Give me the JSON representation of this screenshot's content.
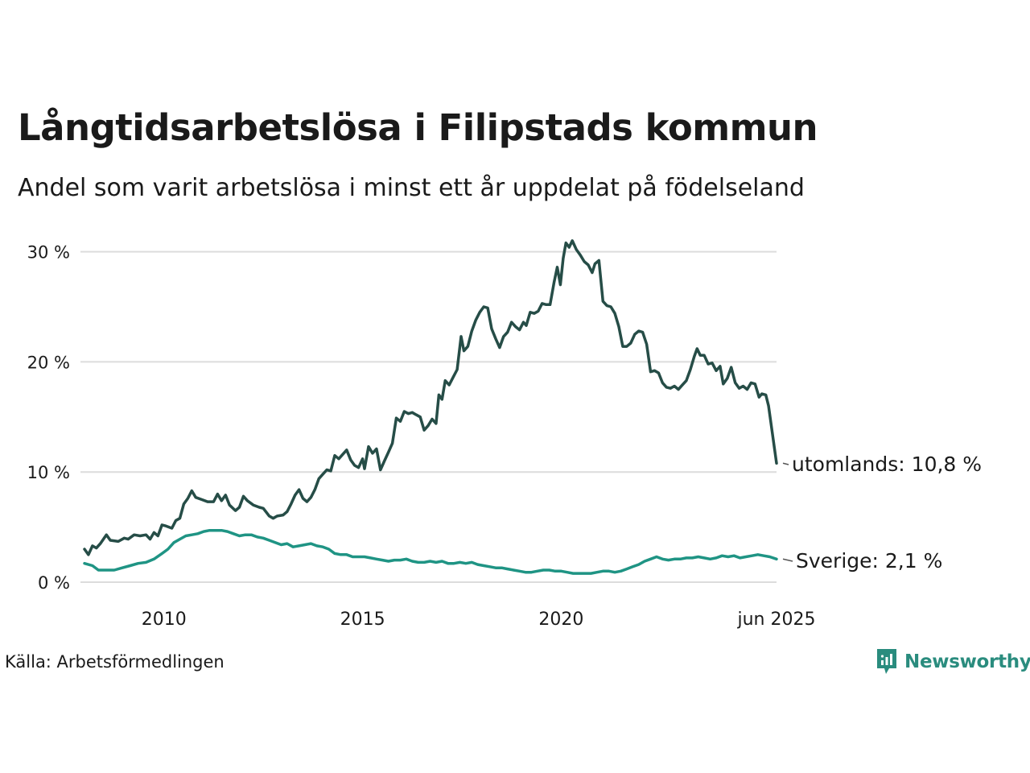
{
  "header": {
    "title": "Långtidsarbetslösa i Filipstads kommun",
    "subtitle": "Andel som varit arbetslösa i minst ett år uppdelat på födelseland"
  },
  "footer": {
    "source": "Källa: Arbetsförmedlingen",
    "brand": "Newsworthy"
  },
  "colors": {
    "utomlands": "#264d47",
    "sverige": "#1f9484",
    "grid": "#dcdcdc",
    "brand": "#2a8c7e"
  },
  "chart_data": {
    "type": "line",
    "x_range": [
      2008.0,
      2025.42
    ],
    "ylim": [
      0,
      31
    ],
    "y_ticks": [
      0,
      10,
      20,
      30
    ],
    "y_tick_labels": [
      "0 %",
      "10 %",
      "20 %",
      "30 %"
    ],
    "x_ticks": [
      2010,
      2015,
      2020,
      2025.42
    ],
    "x_tick_labels": [
      "2010",
      "2015",
      "2020",
      "jun 2025"
    ],
    "grid": "horizontal",
    "series": [
      {
        "key": "utomlands",
        "end_label": "utomlands: 10,8 %",
        "points": [
          [
            2008.0,
            3.0
          ],
          [
            2008.1,
            2.5
          ],
          [
            2008.2,
            3.3
          ],
          [
            2008.3,
            3.1
          ],
          [
            2008.4,
            3.5
          ],
          [
            2008.55,
            4.3
          ],
          [
            2008.65,
            3.8
          ],
          [
            2008.85,
            3.7
          ],
          [
            2009.0,
            4.0
          ],
          [
            2009.1,
            3.9
          ],
          [
            2009.25,
            4.3
          ],
          [
            2009.4,
            4.2
          ],
          [
            2009.55,
            4.3
          ],
          [
            2009.65,
            3.9
          ],
          [
            2009.75,
            4.5
          ],
          [
            2009.85,
            4.2
          ],
          [
            2009.95,
            5.2
          ],
          [
            2010.05,
            5.1
          ],
          [
            2010.2,
            4.9
          ],
          [
            2010.3,
            5.6
          ],
          [
            2010.4,
            5.8
          ],
          [
            2010.5,
            7.1
          ],
          [
            2010.6,
            7.6
          ],
          [
            2010.7,
            8.3
          ],
          [
            2010.8,
            7.7
          ],
          [
            2010.95,
            7.5
          ],
          [
            2011.1,
            7.3
          ],
          [
            2011.25,
            7.3
          ],
          [
            2011.35,
            8.0
          ],
          [
            2011.45,
            7.4
          ],
          [
            2011.55,
            7.9
          ],
          [
            2011.65,
            7.0
          ],
          [
            2011.8,
            6.5
          ],
          [
            2011.9,
            6.8
          ],
          [
            2012.0,
            7.8
          ],
          [
            2012.1,
            7.4
          ],
          [
            2012.25,
            7.0
          ],
          [
            2012.4,
            6.8
          ],
          [
            2012.5,
            6.7
          ],
          [
            2012.65,
            6.0
          ],
          [
            2012.75,
            5.8
          ],
          [
            2012.85,
            6.0
          ],
          [
            2013.0,
            6.1
          ],
          [
            2013.1,
            6.4
          ],
          [
            2013.2,
            7.1
          ],
          [
            2013.3,
            7.9
          ],
          [
            2013.4,
            8.4
          ],
          [
            2013.5,
            7.6
          ],
          [
            2013.6,
            7.3
          ],
          [
            2013.7,
            7.7
          ],
          [
            2013.8,
            8.4
          ],
          [
            2013.9,
            9.4
          ],
          [
            2014.0,
            9.8
          ],
          [
            2014.1,
            10.2
          ],
          [
            2014.2,
            10.1
          ],
          [
            2014.3,
            11.5
          ],
          [
            2014.4,
            11.2
          ],
          [
            2014.5,
            11.6
          ],
          [
            2014.6,
            12.0
          ],
          [
            2014.7,
            11.1
          ],
          [
            2014.8,
            10.6
          ],
          [
            2014.9,
            10.4
          ],
          [
            2015.0,
            11.2
          ],
          [
            2015.05,
            10.3
          ],
          [
            2015.15,
            12.3
          ],
          [
            2015.25,
            11.7
          ],
          [
            2015.35,
            12.1
          ],
          [
            2015.45,
            10.2
          ],
          [
            2015.55,
            11.0
          ],
          [
            2015.65,
            11.8
          ],
          [
            2015.75,
            12.6
          ],
          [
            2015.85,
            14.9
          ],
          [
            2015.95,
            14.6
          ],
          [
            2016.05,
            15.5
          ],
          [
            2016.15,
            15.3
          ],
          [
            2016.25,
            15.4
          ],
          [
            2016.35,
            15.2
          ],
          [
            2016.45,
            15.0
          ],
          [
            2016.55,
            13.8
          ],
          [
            2016.65,
            14.2
          ],
          [
            2016.75,
            14.8
          ],
          [
            2016.85,
            14.4
          ],
          [
            2016.92,
            17.0
          ],
          [
            2017.0,
            16.6
          ],
          [
            2017.08,
            18.3
          ],
          [
            2017.18,
            17.9
          ],
          [
            2017.28,
            18.6
          ],
          [
            2017.38,
            19.3
          ],
          [
            2017.48,
            22.3
          ],
          [
            2017.55,
            21.0
          ],
          [
            2017.65,
            21.4
          ],
          [
            2017.75,
            22.8
          ],
          [
            2017.85,
            23.8
          ],
          [
            2017.95,
            24.5
          ],
          [
            2018.05,
            25.0
          ],
          [
            2018.15,
            24.9
          ],
          [
            2018.25,
            23.0
          ],
          [
            2018.35,
            22.1
          ],
          [
            2018.45,
            21.3
          ],
          [
            2018.55,
            22.3
          ],
          [
            2018.65,
            22.7
          ],
          [
            2018.75,
            23.6
          ],
          [
            2018.85,
            23.2
          ],
          [
            2018.95,
            22.9
          ],
          [
            2019.05,
            23.6
          ],
          [
            2019.12,
            23.3
          ],
          [
            2019.22,
            24.5
          ],
          [
            2019.32,
            24.4
          ],
          [
            2019.42,
            24.6
          ],
          [
            2019.52,
            25.3
          ],
          [
            2019.62,
            25.2
          ],
          [
            2019.72,
            25.2
          ],
          [
            2019.82,
            27.2
          ],
          [
            2019.9,
            28.6
          ],
          [
            2019.98,
            27.0
          ],
          [
            2020.05,
            29.4
          ],
          [
            2020.12,
            30.8
          ],
          [
            2020.2,
            30.4
          ],
          [
            2020.28,
            31.0
          ],
          [
            2020.38,
            30.2
          ],
          [
            2020.48,
            29.7
          ],
          [
            2020.58,
            29.1
          ],
          [
            2020.68,
            28.8
          ],
          [
            2020.78,
            28.1
          ],
          [
            2020.85,
            28.9
          ],
          [
            2020.95,
            29.2
          ],
          [
            2021.05,
            25.5
          ],
          [
            2021.15,
            25.1
          ],
          [
            2021.25,
            25.0
          ],
          [
            2021.35,
            24.4
          ],
          [
            2021.45,
            23.2
          ],
          [
            2021.55,
            21.4
          ],
          [
            2021.65,
            21.4
          ],
          [
            2021.75,
            21.7
          ],
          [
            2021.85,
            22.5
          ],
          [
            2021.95,
            22.8
          ],
          [
            2022.05,
            22.7
          ],
          [
            2022.15,
            21.6
          ],
          [
            2022.25,
            19.1
          ],
          [
            2022.35,
            19.2
          ],
          [
            2022.45,
            19.0
          ],
          [
            2022.55,
            18.1
          ],
          [
            2022.65,
            17.7
          ],
          [
            2022.75,
            17.6
          ],
          [
            2022.85,
            17.8
          ],
          [
            2022.95,
            17.5
          ],
          [
            2023.05,
            17.9
          ],
          [
            2023.15,
            18.3
          ],
          [
            2023.25,
            19.3
          ],
          [
            2023.35,
            20.5
          ],
          [
            2023.42,
            21.2
          ],
          [
            2023.5,
            20.6
          ],
          [
            2023.6,
            20.6
          ],
          [
            2023.7,
            19.8
          ],
          [
            2023.8,
            19.9
          ],
          [
            2023.9,
            19.2
          ],
          [
            2024.0,
            19.6
          ],
          [
            2024.08,
            18.0
          ],
          [
            2024.18,
            18.5
          ],
          [
            2024.28,
            19.5
          ],
          [
            2024.38,
            18.1
          ],
          [
            2024.48,
            17.6
          ],
          [
            2024.58,
            17.8
          ],
          [
            2024.68,
            17.5
          ],
          [
            2024.78,
            18.1
          ],
          [
            2024.88,
            18.0
          ],
          [
            2024.98,
            16.8
          ],
          [
            2025.05,
            17.1
          ],
          [
            2025.15,
            17.0
          ],
          [
            2025.22,
            16.0
          ],
          [
            2025.42,
            10.8
          ]
        ]
      },
      {
        "key": "sverige",
        "end_label": "Sverige:  2,1 %",
        "points": [
          [
            2008.0,
            1.7
          ],
          [
            2008.2,
            1.5
          ],
          [
            2008.35,
            1.1
          ],
          [
            2008.55,
            1.1
          ],
          [
            2008.75,
            1.1
          ],
          [
            2008.95,
            1.3
          ],
          [
            2009.15,
            1.5
          ],
          [
            2009.35,
            1.7
          ],
          [
            2009.55,
            1.8
          ],
          [
            2009.75,
            2.1
          ],
          [
            2009.95,
            2.6
          ],
          [
            2010.1,
            3.0
          ],
          [
            2010.25,
            3.6
          ],
          [
            2010.4,
            3.9
          ],
          [
            2010.55,
            4.2
          ],
          [
            2010.7,
            4.3
          ],
          [
            2010.85,
            4.4
          ],
          [
            2011.0,
            4.6
          ],
          [
            2011.15,
            4.7
          ],
          [
            2011.3,
            4.7
          ],
          [
            2011.45,
            4.7
          ],
          [
            2011.6,
            4.6
          ],
          [
            2011.75,
            4.4
          ],
          [
            2011.9,
            4.2
          ],
          [
            2012.05,
            4.3
          ],
          [
            2012.2,
            4.3
          ],
          [
            2012.35,
            4.1
          ],
          [
            2012.5,
            4.0
          ],
          [
            2012.65,
            3.8
          ],
          [
            2012.8,
            3.6
          ],
          [
            2012.95,
            3.4
          ],
          [
            2013.1,
            3.5
          ],
          [
            2013.25,
            3.2
          ],
          [
            2013.4,
            3.3
          ],
          [
            2013.55,
            3.4
          ],
          [
            2013.7,
            3.5
          ],
          [
            2013.85,
            3.3
          ],
          [
            2014.0,
            3.2
          ],
          [
            2014.15,
            3.0
          ],
          [
            2014.3,
            2.6
          ],
          [
            2014.45,
            2.5
          ],
          [
            2014.6,
            2.5
          ],
          [
            2014.75,
            2.3
          ],
          [
            2014.9,
            2.3
          ],
          [
            2015.05,
            2.3
          ],
          [
            2015.2,
            2.2
          ],
          [
            2015.35,
            2.1
          ],
          [
            2015.5,
            2.0
          ],
          [
            2015.65,
            1.9
          ],
          [
            2015.8,
            2.0
          ],
          [
            2015.95,
            2.0
          ],
          [
            2016.1,
            2.1
          ],
          [
            2016.25,
            1.9
          ],
          [
            2016.4,
            1.8
          ],
          [
            2016.55,
            1.8
          ],
          [
            2016.7,
            1.9
          ],
          [
            2016.85,
            1.8
          ],
          [
            2017.0,
            1.9
          ],
          [
            2017.15,
            1.7
          ],
          [
            2017.3,
            1.7
          ],
          [
            2017.45,
            1.8
          ],
          [
            2017.6,
            1.7
          ],
          [
            2017.75,
            1.8
          ],
          [
            2017.9,
            1.6
          ],
          [
            2018.05,
            1.5
          ],
          [
            2018.2,
            1.4
          ],
          [
            2018.35,
            1.3
          ],
          [
            2018.5,
            1.3
          ],
          [
            2018.65,
            1.2
          ],
          [
            2018.8,
            1.1
          ],
          [
            2018.95,
            1.0
          ],
          [
            2019.1,
            0.9
          ],
          [
            2019.25,
            0.9
          ],
          [
            2019.4,
            1.0
          ],
          [
            2019.55,
            1.1
          ],
          [
            2019.7,
            1.1
          ],
          [
            2019.85,
            1.0
          ],
          [
            2020.0,
            1.0
          ],
          [
            2020.15,
            0.9
          ],
          [
            2020.3,
            0.8
          ],
          [
            2020.45,
            0.8
          ],
          [
            2020.6,
            0.8
          ],
          [
            2020.75,
            0.8
          ],
          [
            2020.9,
            0.9
          ],
          [
            2021.05,
            1.0
          ],
          [
            2021.2,
            1.0
          ],
          [
            2021.35,
            0.9
          ],
          [
            2021.5,
            1.0
          ],
          [
            2021.65,
            1.2
          ],
          [
            2021.8,
            1.4
          ],
          [
            2021.95,
            1.6
          ],
          [
            2022.1,
            1.9
          ],
          [
            2022.25,
            2.1
          ],
          [
            2022.4,
            2.3
          ],
          [
            2022.55,
            2.1
          ],
          [
            2022.7,
            2.0
          ],
          [
            2022.85,
            2.1
          ],
          [
            2023.0,
            2.1
          ],
          [
            2023.15,
            2.2
          ],
          [
            2023.3,
            2.2
          ],
          [
            2023.45,
            2.3
          ],
          [
            2023.6,
            2.2
          ],
          [
            2023.75,
            2.1
          ],
          [
            2023.9,
            2.2
          ],
          [
            2024.05,
            2.4
          ],
          [
            2024.2,
            2.3
          ],
          [
            2024.35,
            2.4
          ],
          [
            2024.5,
            2.2
          ],
          [
            2024.65,
            2.3
          ],
          [
            2024.8,
            2.4
          ],
          [
            2024.95,
            2.5
          ],
          [
            2025.1,
            2.4
          ],
          [
            2025.25,
            2.3
          ],
          [
            2025.42,
            2.1
          ]
        ]
      }
    ]
  }
}
